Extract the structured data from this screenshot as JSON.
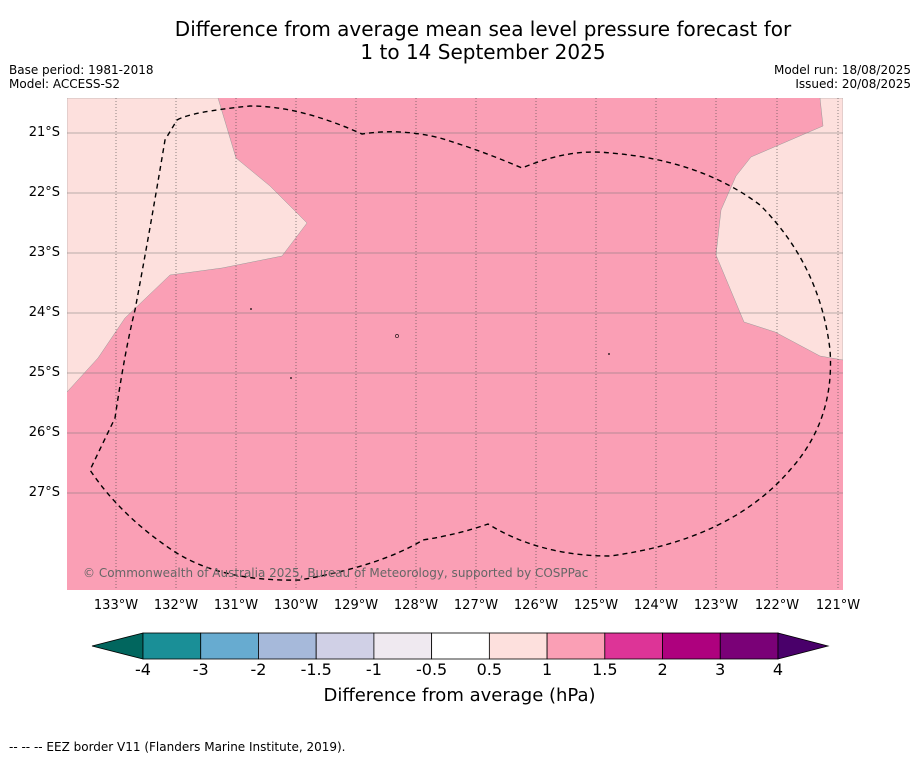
{
  "title_line1": "Difference from average mean sea level pressure forecast for",
  "title_line2": "1 to 14 September 2025",
  "meta_left": {
    "base_period": "Base period: 1981-2018",
    "model": "Model: ACCESS-S2"
  },
  "meta_right": {
    "model_run": "Model run: 18/08/2025",
    "issued": "Issued: 20/08/2025"
  },
  "latitude_labels": [
    "21°S",
    "22°S",
    "23°S",
    "24°S",
    "25°S",
    "26°S",
    "27°S"
  ],
  "longitude_labels": [
    "133°W",
    "132°W",
    "131°W",
    "130°W",
    "129°W",
    "128°W",
    "127°W",
    "126°W",
    "125°W",
    "124°W",
    "123°W",
    "122°W",
    "121°W"
  ],
  "copyright": "© Commonwealth of Australia 2025, Bureau of Meteorology, supported by COSPPac",
  "colorbar": {
    "ticks": [
      "-4",
      "-3",
      "-2",
      "-1.5",
      "-1",
      "-0.5",
      "0.5",
      "1",
      "1.5",
      "2",
      "3",
      "4"
    ],
    "colors": [
      "#1a8f97",
      "#67abd0",
      "#a6b9da",
      "#d0d0e6",
      "#efe9f0",
      "#ffffff",
      "#fde0dd",
      "#fa9fb5",
      "#dd3497",
      "#ae017e",
      "#7a0177"
    ],
    "under_color": "#01665e",
    "over_color": "#49006a",
    "label": "Difference from average (hPa)"
  },
  "map_colors": {
    "light": "#fde0dd",
    "pink": "#fa9fb5"
  },
  "legend_note": "--  --  -- EEZ border V11 (Flanders Marine Institute, 2019)."
}
